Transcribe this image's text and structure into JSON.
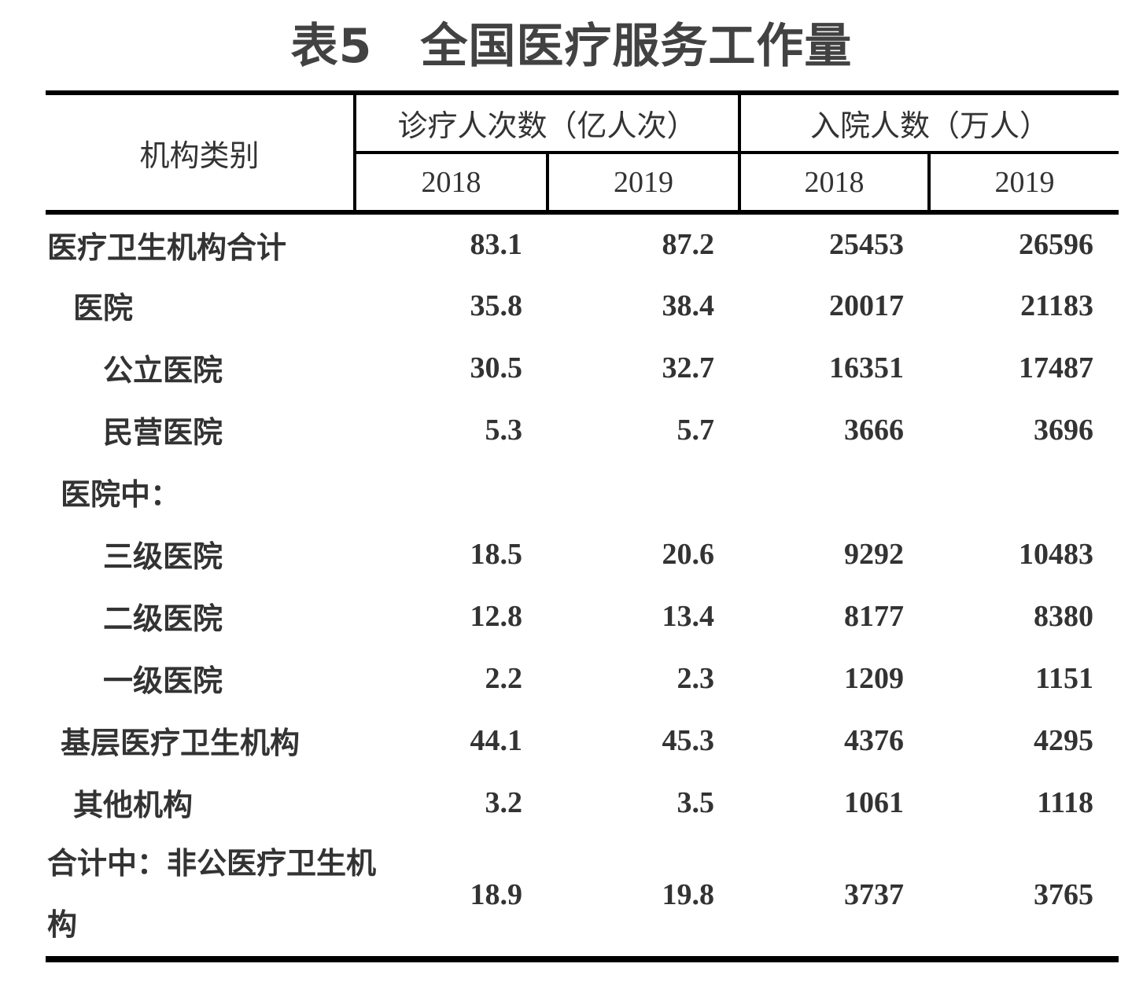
{
  "title": "表5　全国医疗服务工作量",
  "table": {
    "corner_header": "机构类别",
    "col_groups": [
      {
        "label": "诊疗人次数（亿人次）",
        "years": [
          "2018",
          "2019"
        ]
      },
      {
        "label": "入院人数（万人）",
        "years": [
          "2018",
          "2019"
        ]
      }
    ],
    "rows": [
      {
        "label": "医疗卫生机构合计",
        "values": [
          "83.1",
          "87.2",
          "25453",
          "26596"
        ]
      },
      {
        "label": "医院",
        "values": [
          "35.8",
          "38.4",
          "20017",
          "21183"
        ]
      },
      {
        "label": "公立医院",
        "values": [
          "30.5",
          "32.7",
          "16351",
          "17487"
        ]
      },
      {
        "label": "民营医院",
        "values": [
          "5.3",
          "5.7",
          "3666",
          "3696"
        ]
      },
      {
        "label": "医院中：",
        "values": [
          "",
          "",
          "",
          ""
        ]
      },
      {
        "label": "三级医院",
        "values": [
          "18.5",
          "20.6",
          "9292",
          "10483"
        ]
      },
      {
        "label": "二级医院",
        "values": [
          "12.8",
          "13.4",
          "8177",
          "8380"
        ]
      },
      {
        "label": "一级医院",
        "values": [
          "2.2",
          "2.3",
          "1209",
          "1151"
        ]
      },
      {
        "label": "基层医疗卫生机构",
        "values": [
          "44.1",
          "45.3",
          "4376",
          "4295"
        ]
      },
      {
        "label": "其他机构",
        "values": [
          "3.2",
          "3.5",
          "1061",
          "1118"
        ]
      },
      {
        "label": "合计中：非公医疗卫生机构",
        "values": [
          "18.9",
          "19.8",
          "3737",
          "3765"
        ]
      }
    ]
  },
  "colors": {
    "text": "#333333",
    "title": "#424242",
    "border": "#000000",
    "background": "#ffffff"
  }
}
